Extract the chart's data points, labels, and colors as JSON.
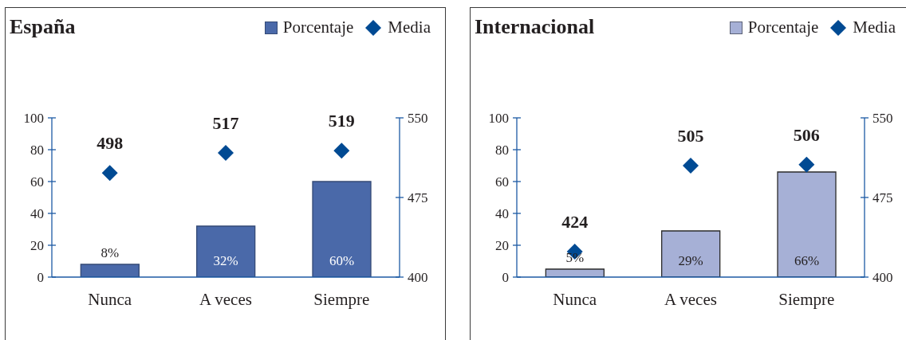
{
  "chart_data": [
    {
      "type": "bar",
      "title": "España",
      "categories": [
        "Nunca",
        "A veces",
        "Siempre"
      ],
      "series": [
        {
          "name": "Porcentaje",
          "color": "#4a69a9",
          "values": [
            8,
            32,
            60
          ],
          "value_labels": [
            "8%",
            "32%",
            "60%"
          ]
        },
        {
          "name": "Media",
          "type": "scatter",
          "axis": "y2",
          "marker": "diamond",
          "color": "#004a93",
          "values": [
            498,
            517,
            519
          ],
          "value_labels": [
            "498",
            "517",
            "519"
          ]
        }
      ],
      "ylim": [
        0,
        100
      ],
      "yticks": [
        0,
        20,
        40,
        60,
        80,
        100
      ],
      "y2lim": [
        400,
        550
      ],
      "y2ticks": [
        400,
        475,
        550
      ],
      "legend": "top right"
    },
    {
      "type": "bar",
      "title": "Internacional",
      "categories": [
        "Nunca",
        "A veces",
        "Siempre"
      ],
      "series": [
        {
          "name": "Porcentaje",
          "color": "#a6b0d6",
          "values": [
            5,
            29,
            66
          ],
          "value_labels": [
            "5%",
            "29%",
            "66%"
          ]
        },
        {
          "name": "Media",
          "type": "scatter",
          "axis": "y2",
          "marker": "diamond",
          "color": "#004a93",
          "values": [
            424,
            505,
            506
          ],
          "value_labels": [
            "424",
            "505",
            "506"
          ]
        }
      ],
      "ylim": [
        0,
        100
      ],
      "yticks": [
        0,
        20,
        40,
        60,
        80,
        100
      ],
      "y2lim": [
        400,
        550
      ],
      "y2ticks": [
        400,
        475,
        550
      ],
      "legend": "top right"
    }
  ]
}
